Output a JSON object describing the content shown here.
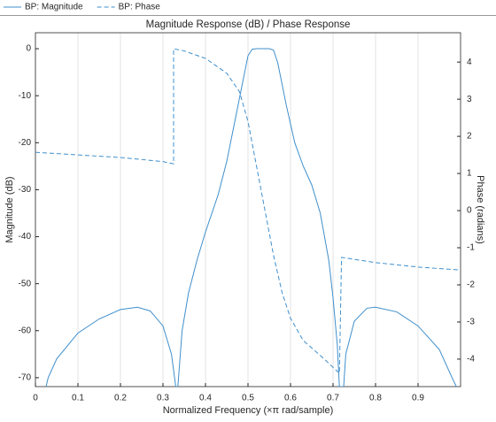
{
  "chart_data": {
    "type": "line",
    "title": "Magnitude Response (dB) / Phase Response",
    "x_label": "Normalized Frequency (×π rad/sample)",
    "y_label": "Magnitude (dB)",
    "y2_label": "Phase (radians)",
    "xlim": [
      0,
      1
    ],
    "xticks": [
      0,
      0.1,
      0.2,
      0.3,
      0.4,
      0.5,
      0.6,
      0.7,
      0.8,
      0.9
    ],
    "ylim": [
      -71.9,
      3.4
    ],
    "yticks": [
      -70,
      -60,
      -50,
      -40,
      -30,
      -20,
      -10,
      0
    ],
    "y2lim": [
      -4.74,
      4.79
    ],
    "y2ticks": [
      -4,
      -3,
      -2,
      -1,
      0,
      1,
      2,
      3,
      4
    ],
    "xgrid": true,
    "legend": "top",
    "series": [
      {
        "name": "BP: Magnitude",
        "color": "#3f8fcc",
        "dashed": false,
        "x": [
          0.025,
          0.03,
          0.05,
          0.1,
          0.15,
          0.2,
          0.24,
          0.27,
          0.3,
          0.32,
          0.33,
          0.335,
          0.345,
          0.36,
          0.38,
          0.4,
          0.43,
          0.45,
          0.47,
          0.49,
          0.5,
          0.51,
          0.52,
          0.55,
          0.56,
          0.57,
          0.59,
          0.61,
          0.63,
          0.65,
          0.67,
          0.69,
          0.7,
          0.71,
          0.715,
          0.725,
          0.73,
          0.75,
          0.78,
          0.8,
          0.85,
          0.9,
          0.95,
          0.98,
          0.99
        ],
        "values": [
          -71.9,
          -70,
          -66,
          -60.5,
          -57.5,
          -55.5,
          -55,
          -55.8,
          -59,
          -65,
          -71.9,
          -71.9,
          -60,
          -52,
          -45,
          -39,
          -31,
          -24,
          -15,
          -6,
          -1.5,
          -0.1,
          0,
          0,
          -0.3,
          -3,
          -12,
          -20,
          -25,
          -29,
          -35,
          -45,
          -53,
          -63,
          -71.9,
          -71.9,
          -65,
          -58,
          -55.2,
          -55,
          -56,
          -59,
          -64,
          -70,
          -71.9
        ]
      },
      {
        "name": "BP: Phase",
        "color": "#3f8fcc",
        "dashed": true,
        "axis": "y2",
        "x": [
          0,
          0.1,
          0.2,
          0.3,
          0.325,
          0.325,
          0.35,
          0.4,
          0.45,
          0.48,
          0.5,
          0.52,
          0.54,
          0.56,
          0.58,
          0.6,
          0.63,
          0.67,
          0.715,
          0.72,
          0.8,
          0.9,
          1
        ],
        "values": [
          1.57,
          1.5,
          1.43,
          1.32,
          1.26,
          4.36,
          4.3,
          4.1,
          3.7,
          3.2,
          2.4,
          1.2,
          0,
          -1.2,
          -2.2,
          -2.9,
          -3.5,
          -3.9,
          -4.38,
          -1.26,
          -1.4,
          -1.52,
          -1.6
        ]
      }
    ]
  }
}
